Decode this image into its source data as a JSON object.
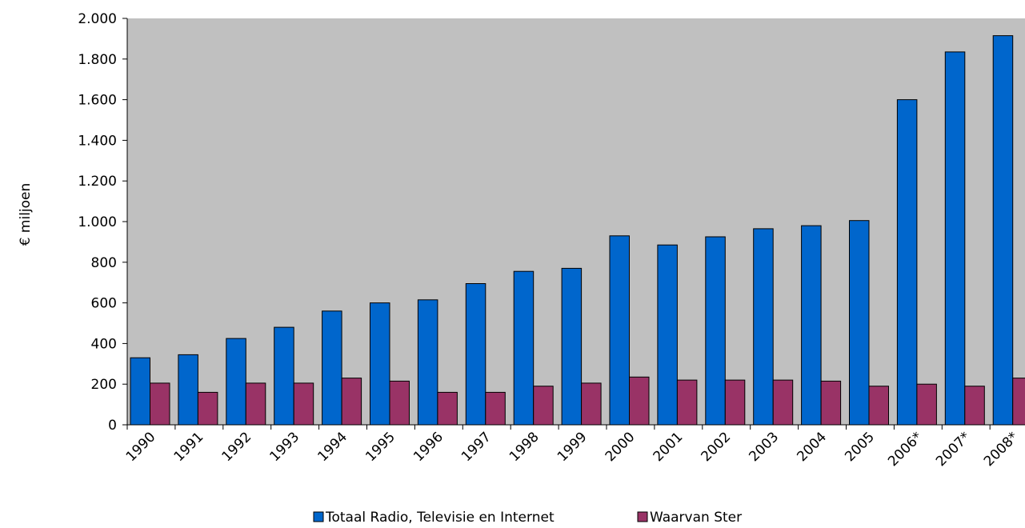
{
  "chart_data": {
    "type": "bar",
    "title": "",
    "xlabel": "",
    "ylabel": "€ miljoen",
    "ylim": [
      0,
      2000
    ],
    "yticks": [
      0,
      200,
      400,
      600,
      800,
      1000,
      1200,
      1400,
      1600,
      1800,
      2000
    ],
    "ytick_labels": [
      "0",
      "200",
      "400",
      "600",
      "800",
      "1.000",
      "1.200",
      "1.400",
      "1.600",
      "1.800",
      "2.000"
    ],
    "categories": [
      "1990",
      "1991",
      "1992",
      "1993",
      "1994",
      "1995",
      "1996",
      "1997",
      "1998",
      "1999",
      "2000",
      "2001",
      "2002",
      "2003",
      "2004",
      "2005",
      "2006*",
      "2007*",
      "2008*"
    ],
    "series": [
      {
        "name": "Totaal Radio, Televisie en Internet",
        "color": "#0066cc",
        "values": [
          330,
          345,
          425,
          480,
          560,
          600,
          615,
          695,
          755,
          770,
          930,
          885,
          925,
          965,
          980,
          1005,
          1600,
          1835,
          1915
        ]
      },
      {
        "name": "Waarvan Ster",
        "color": "#993366",
        "values": [
          205,
          160,
          205,
          205,
          230,
          215,
          160,
          160,
          190,
          205,
          235,
          220,
          220,
          220,
          215,
          190,
          200,
          190,
          230
        ]
      }
    ],
    "plot_background": "#c0c0c0",
    "grid": false,
    "legend_position": "bottom"
  }
}
